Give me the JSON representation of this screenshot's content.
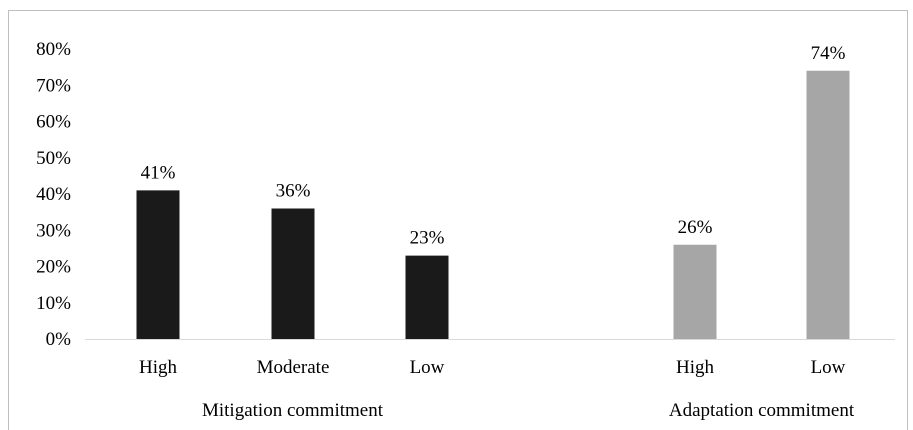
{
  "chart_data": {
    "type": "bar",
    "title": "",
    "xlabel": "",
    "ylabel": "",
    "ylim": [
      0,
      80
    ],
    "yticks": [
      "0%",
      "10%",
      "20%",
      "30%",
      "40%",
      "50%",
      "60%",
      "70%",
      "80%"
    ],
    "grid": false,
    "legend": "none",
    "groups": [
      {
        "label": "Mitigation commitment",
        "color": "#1a1a1a",
        "bars": [
          {
            "category": "High",
            "value": 41,
            "label": "41%"
          },
          {
            "category": "Moderate",
            "value": 36,
            "label": "36%"
          },
          {
            "category": "Low",
            "value": 23,
            "label": "23%"
          }
        ]
      },
      {
        "label": "Adaptation commitment",
        "color": "#a6a6a6",
        "bars": [
          {
            "category": "High",
            "value": 26,
            "label": "26%"
          },
          {
            "category": "Low",
            "value": 74,
            "label": "74%"
          }
        ]
      }
    ]
  }
}
